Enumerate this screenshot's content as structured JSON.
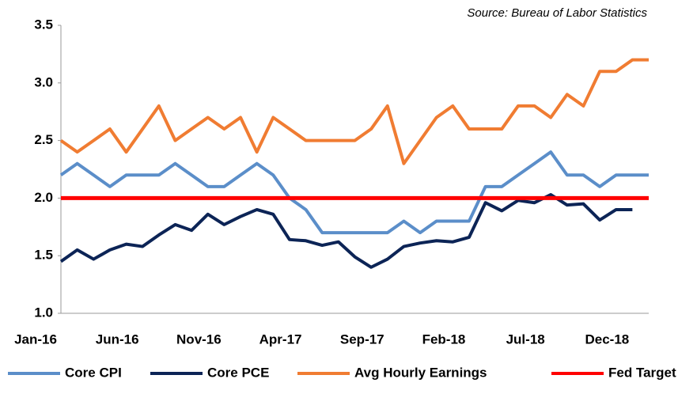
{
  "chart_data": {
    "type": "line",
    "source": "Source: Bureau of Labor Statistics",
    "categories": [
      "Jan-16",
      null,
      null,
      null,
      null,
      "Jun-16",
      null,
      null,
      null,
      null,
      "Nov-16",
      null,
      null,
      null,
      null,
      "Apr-17",
      null,
      null,
      null,
      null,
      "Sep-17",
      null,
      null,
      null,
      null,
      "Feb-18",
      null,
      null,
      null,
      null,
      "Jul-18",
      null,
      null,
      null,
      null,
      "Dec-18",
      null
    ],
    "series": [
      {
        "name": "Core CPI",
        "color": "#5b8ec9",
        "values": [
          2.2,
          2.3,
          2.2,
          2.1,
          2.2,
          2.2,
          2.2,
          2.3,
          2.2,
          2.1,
          2.1,
          2.2,
          2.3,
          2.2,
          2.0,
          1.9,
          1.7,
          1.7,
          1.7,
          1.7,
          1.7,
          1.8,
          1.7,
          1.8,
          1.8,
          1.8,
          2.1,
          2.1,
          2.2,
          2.3,
          2.4,
          2.2,
          2.2,
          2.1,
          2.2,
          2.2,
          2.2
        ]
      },
      {
        "name": "Core PCE",
        "color": "#0c2456",
        "values": [
          1.45,
          1.55,
          1.47,
          1.55,
          1.6,
          1.58,
          1.68,
          1.77,
          1.72,
          1.86,
          1.77,
          1.84,
          1.9,
          1.86,
          1.64,
          1.63,
          1.59,
          1.62,
          1.49,
          1.4,
          1.47,
          1.58,
          1.61,
          1.63,
          1.62,
          1.66,
          1.96,
          1.89,
          1.98,
          1.96,
          2.03,
          1.94,
          1.95,
          1.81,
          1.9,
          1.9,
          null
        ]
      },
      {
        "name": "Avg Hourly Earnings",
        "color": "#f07c32",
        "values": [
          2.5,
          2.4,
          2.5,
          2.6,
          2.4,
          2.6,
          2.8,
          2.5,
          2.6,
          2.7,
          2.6,
          2.7,
          2.4,
          2.7,
          2.6,
          2.5,
          2.5,
          2.5,
          2.5,
          2.6,
          2.8,
          2.3,
          2.5,
          2.7,
          2.8,
          2.6,
          2.6,
          2.6,
          2.8,
          2.8,
          2.7,
          2.9,
          2.8,
          3.1,
          3.1,
          3.2,
          3.2
        ]
      },
      {
        "name": "Fed Target",
        "color": "#ff0000",
        "values": [
          2,
          2,
          2,
          2,
          2,
          2,
          2,
          2,
          2,
          2,
          2,
          2,
          2,
          2,
          2,
          2,
          2,
          2,
          2,
          2,
          2,
          2,
          2,
          2,
          2,
          2,
          2,
          2,
          2,
          2,
          2,
          2,
          2,
          2,
          2,
          2,
          2
        ]
      }
    ],
    "ylim": [
      1,
      3.5
    ],
    "yticks": [
      {
        "value": 1,
        "label": "1.0"
      },
      1.5,
      {
        "value": 2,
        "label": "2.0"
      },
      2.5,
      {
        "value": 3,
        "label": "3.0"
      },
      3.5
    ],
    "grid": false
  }
}
